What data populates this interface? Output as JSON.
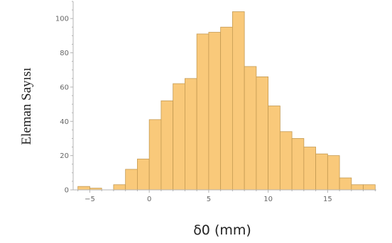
{
  "chart_data": {
    "type": "bar",
    "title": "",
    "xlabel": "δ0 (mm)",
    "ylabel": "Eleman Sayısı",
    "bin_width": 1,
    "bin_starts": [
      -6,
      -5,
      -4,
      -3,
      -2,
      -1,
      0,
      1,
      2,
      3,
      4,
      5,
      6,
      7,
      8,
      9,
      10,
      11,
      12,
      13,
      14,
      15,
      16,
      17,
      18
    ],
    "values": [
      2,
      1,
      0,
      3,
      12,
      18,
      41,
      52,
      62,
      65,
      91,
      92,
      95,
      104,
      72,
      66,
      49,
      34,
      30,
      25,
      21,
      20,
      7,
      3,
      3
    ],
    "xlim": [
      -6.4,
      19.1
    ],
    "ylim": [
      0,
      110
    ],
    "xticks": [
      -5,
      0,
      5,
      10,
      15
    ],
    "yticks": [
      0,
      20,
      40,
      60,
      80,
      100
    ],
    "grid": false,
    "bar_color": "#f9c97a",
    "edge_color": "#c49a52"
  }
}
